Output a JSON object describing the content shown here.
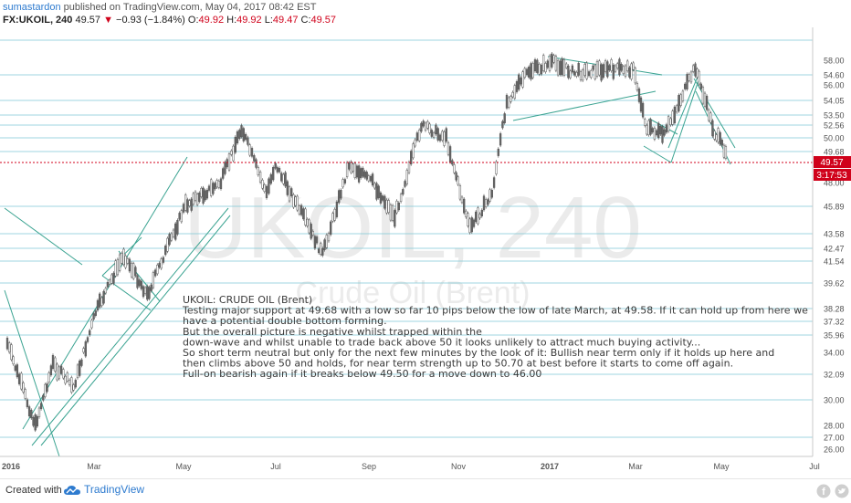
{
  "header": {
    "author": "sumastardon",
    "published_text": "published on TradingView.com, May 04, 2017 08:42 EST",
    "symbol": "FX:UKOIL, 240",
    "last": "49.57",
    "change_arrow": "▼",
    "change": "−0.93 (−1.84%)",
    "o_label": "O:",
    "o_value": "49.92",
    "h_label": "H:",
    "h_value": "49.92",
    "l_label": "L:",
    "l_value": "49.47",
    "c_label": "C:",
    "c_value": "49.57"
  },
  "watermark": {
    "main": "UKOIL, 240",
    "sub": "Crude Oil (Brent)"
  },
  "annotation": {
    "lines": [
      "UKOIL: CRUDE OIL (Brent)",
      "Testing major support at 49.68 with a low so far 10 pips below the low of late March, at 49.58. If it can hold up from here we",
      " have a potential double bottom forming.",
      "But the overall picture is negative whilst trapped within the",
      "down-wave and whilst unable to trade back above 50 it looks unlikely to attract much buying activity...",
      "So short term neutral but only for the next few minutes by the look of it: Bullish near term only if it holds up here and",
      "then climbs above 50 and holds, for near term strength up to 50.70 at best before it starts to come off again.",
      "Full-on bearish again if it breaks below 49.50 for a move down to 46.00"
    ]
  },
  "price_badge": {
    "price": "49.57",
    "countdown": "3:17:53"
  },
  "footer": {
    "created_with": "Created with",
    "brand": "TradingView"
  },
  "colors": {
    "candle_up": "#555555",
    "level": "#7fc8d6",
    "trend": "#3aa391",
    "accent": "#d0021b",
    "brand": "#2e7bcf"
  },
  "chart_data": {
    "type": "candlestick",
    "symbol": "FX:UKOIL",
    "interval": "240",
    "y_tick_labels": [
      "58.00",
      "56.00",
      "54.60",
      "54.05",
      "53.50",
      "52.56",
      "50.00",
      "49.68",
      "48.00",
      "45.89",
      "43.58",
      "42.47",
      "41.54",
      "39.62",
      "38.28",
      "37.32",
      "35.96",
      "34.00",
      "32.09",
      "30.00",
      "28.00",
      "27.00",
      "26.00"
    ],
    "horizontal_levels": [
      54.6,
      54.05,
      53.5,
      52.56,
      50.0,
      49.68,
      45.89,
      43.58,
      42.47,
      41.54,
      39.62,
      38.28,
      37.32,
      35.96,
      32.09,
      30.0,
      27.0
    ],
    "x_tick_labels": [
      "2016",
      "Mar",
      "May",
      "Jul",
      "Sep",
      "Nov",
      "2017",
      "Mar",
      "May",
      "Jul"
    ],
    "ylim": [
      25.5,
      60
    ],
    "last_price": 49.57,
    "approx_close_path": [
      {
        "date": "2016-01",
        "y": 35
      },
      {
        "date": "2016-01-20",
        "y": 28
      },
      {
        "date": "2016-02",
        "y": 33
      },
      {
        "date": "2016-02-15",
        "y": 31
      },
      {
        "date": "2016-03",
        "y": 38
      },
      {
        "date": "2016-03-20",
        "y": 42
      },
      {
        "date": "2016-04-05",
        "y": 39
      },
      {
        "date": "2016-05",
        "y": 46
      },
      {
        "date": "2016-05-25",
        "y": 48
      },
      {
        "date": "2016-06-08",
        "y": 52
      },
      {
        "date": "2016-06-25",
        "y": 47
      },
      {
        "date": "2016-07",
        "y": 49
      },
      {
        "date": "2016-07-20",
        "y": 45
      },
      {
        "date": "2016-08-02",
        "y": 42
      },
      {
        "date": "2016-08-20",
        "y": 49
      },
      {
        "date": "2016-09-05",
        "y": 48
      },
      {
        "date": "2016-09-20",
        "y": 45
      },
      {
        "date": "2016-10-08",
        "y": 52.5
      },
      {
        "date": "2016-10-25",
        "y": 50
      },
      {
        "date": "2016-11-10",
        "y": 44
      },
      {
        "date": "2016-11-25",
        "y": 47
      },
      {
        "date": "2016-12-05",
        "y": 54
      },
      {
        "date": "2016-12-20",
        "y": 55.5
      },
      {
        "date": "2017-01-06",
        "y": 57.5
      },
      {
        "date": "2017-01-20",
        "y": 55
      },
      {
        "date": "2017-02-10",
        "y": 56
      },
      {
        "date": "2017-03-01",
        "y": 56
      },
      {
        "date": "2017-03-10",
        "y": 52
      },
      {
        "date": "2017-03-22",
        "y": 50.5
      },
      {
        "date": "2017-04-12",
        "y": 56.5
      },
      {
        "date": "2017-04-25",
        "y": 51
      },
      {
        "date": "2017-05-04",
        "y": 49.57
      }
    ]
  }
}
